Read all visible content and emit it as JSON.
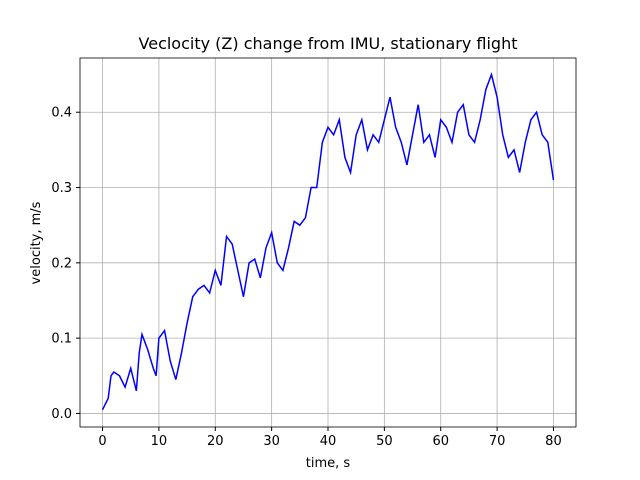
{
  "chart_data": {
    "type": "line",
    "title": "Veclocity (Z) change from IMU, stationary flight",
    "xlabel": "time, s",
    "ylabel": "velocity, m/s",
    "x": [
      0,
      1,
      1.5,
      2,
      3,
      4,
      5,
      6,
      6.5,
      7,
      8,
      9,
      9.5,
      10,
      11,
      12,
      13,
      14,
      15,
      16,
      17,
      18,
      19,
      20,
      21,
      22,
      23,
      24,
      25,
      26,
      27,
      28,
      29,
      30,
      31,
      32,
      33,
      34,
      35,
      36,
      37,
      38,
      39,
      40,
      41,
      42,
      43,
      44,
      45,
      46,
      47,
      48,
      49,
      50,
      51,
      52,
      53,
      54,
      55,
      56,
      57,
      58,
      59,
      60,
      61,
      62,
      63,
      64,
      65,
      66,
      67,
      68,
      69,
      70,
      71,
      72,
      73,
      74,
      75,
      76,
      77,
      78,
      79,
      80
    ],
    "series": [
      {
        "name": "velocity",
        "color": "#0000ff",
        "values": [
          0.005,
          0.02,
          0.05,
          0.055,
          0.05,
          0.035,
          0.06,
          0.03,
          0.08,
          0.105,
          0.085,
          0.06,
          0.05,
          0.1,
          0.11,
          0.07,
          0.045,
          0.08,
          0.12,
          0.155,
          0.165,
          0.17,
          0.16,
          0.19,
          0.17,
          0.235,
          0.225,
          0.19,
          0.155,
          0.2,
          0.205,
          0.18,
          0.22,
          0.24,
          0.2,
          0.19,
          0.22,
          0.255,
          0.25,
          0.26,
          0.3,
          0.3,
          0.36,
          0.38,
          0.37,
          0.39,
          0.34,
          0.32,
          0.37,
          0.39,
          0.35,
          0.37,
          0.36,
          0.39,
          0.42,
          0.38,
          0.36,
          0.33,
          0.37,
          0.41,
          0.36,
          0.37,
          0.34,
          0.39,
          0.38,
          0.36,
          0.4,
          0.41,
          0.37,
          0.36,
          0.39,
          0.43,
          0.45,
          0.42,
          0.37,
          0.34,
          0.35,
          0.32,
          0.36,
          0.39,
          0.4,
          0.37,
          0.36,
          0.31
        ]
      }
    ],
    "xlim": [
      -4,
      84
    ],
    "xticks": [
      0,
      10,
      20,
      30,
      40,
      50,
      60,
      70,
      80
    ],
    "ylim": [
      -0.018,
      0.472
    ],
    "yticks": [
      {
        "value": 0,
        "label": "0.0"
      },
      0.1,
      0.2,
      0.3,
      0.4
    ],
    "grid": true
  }
}
